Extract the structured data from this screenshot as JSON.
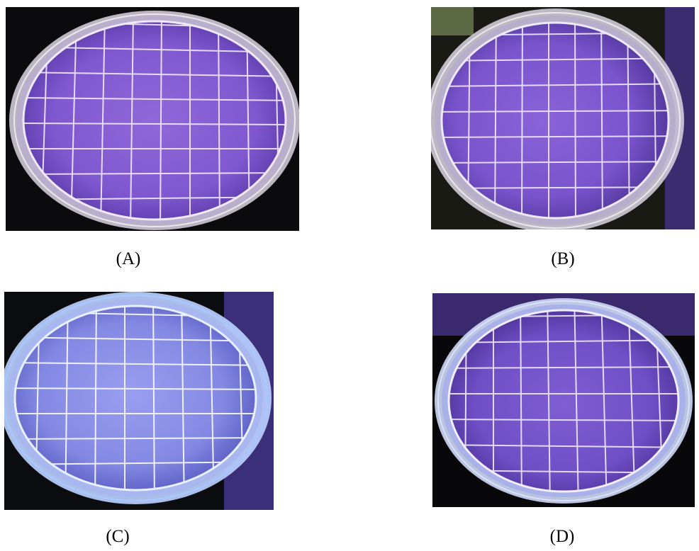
{
  "figure": {
    "panels": [
      {
        "id": "a",
        "label": "(A)",
        "tint": "#8a5cd6",
        "rim": "#e7e0f0",
        "bg": "#0b0b0d"
      },
      {
        "id": "b",
        "label": "(B)",
        "tint": "#8658d4",
        "rim": "#e6e2ef",
        "bg": "#0f120c"
      },
      {
        "id": "c",
        "label": "(C)",
        "tint": "#8f92e8",
        "rim": "#bfd6ff",
        "bg": "#0a0c10"
      },
      {
        "id": "d",
        "label": "(D)",
        "tint": "#7d56cf",
        "rim": "#cfd9f5",
        "bg": "#08080a"
      }
    ]
  }
}
